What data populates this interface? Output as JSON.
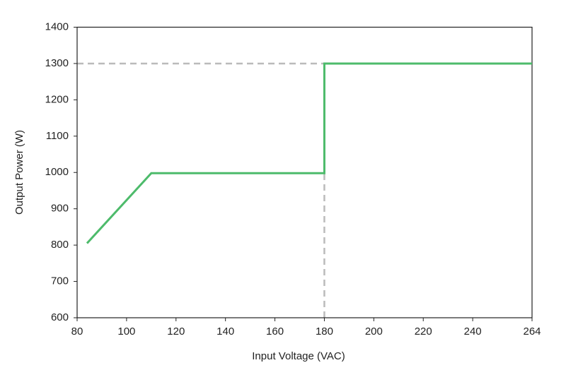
{
  "chart_data": {
    "type": "line",
    "x_label": "Input Voltage (VAC)",
    "y_label": "Output Power (W)",
    "series": [
      {
        "color": "#4dbb6b",
        "x": [
          84,
          110,
          180,
          180,
          264
        ],
        "values": [
          805,
          998,
          998,
          1300,
          1300
        ]
      }
    ],
    "xlim": [
      80,
      264
    ],
    "xticks": [
      80,
      100,
      120,
      140,
      160,
      180,
      200,
      220,
      240,
      264
    ],
    "ylim": [
      600,
      1400
    ],
    "yticks": [
      600,
      700,
      800,
      900,
      1000,
      1100,
      1200,
      1300,
      1400
    ],
    "reference_x": [
      180
    ],
    "reference_y": [
      1300
    ],
    "reference_color": "#bbbbbb"
  }
}
